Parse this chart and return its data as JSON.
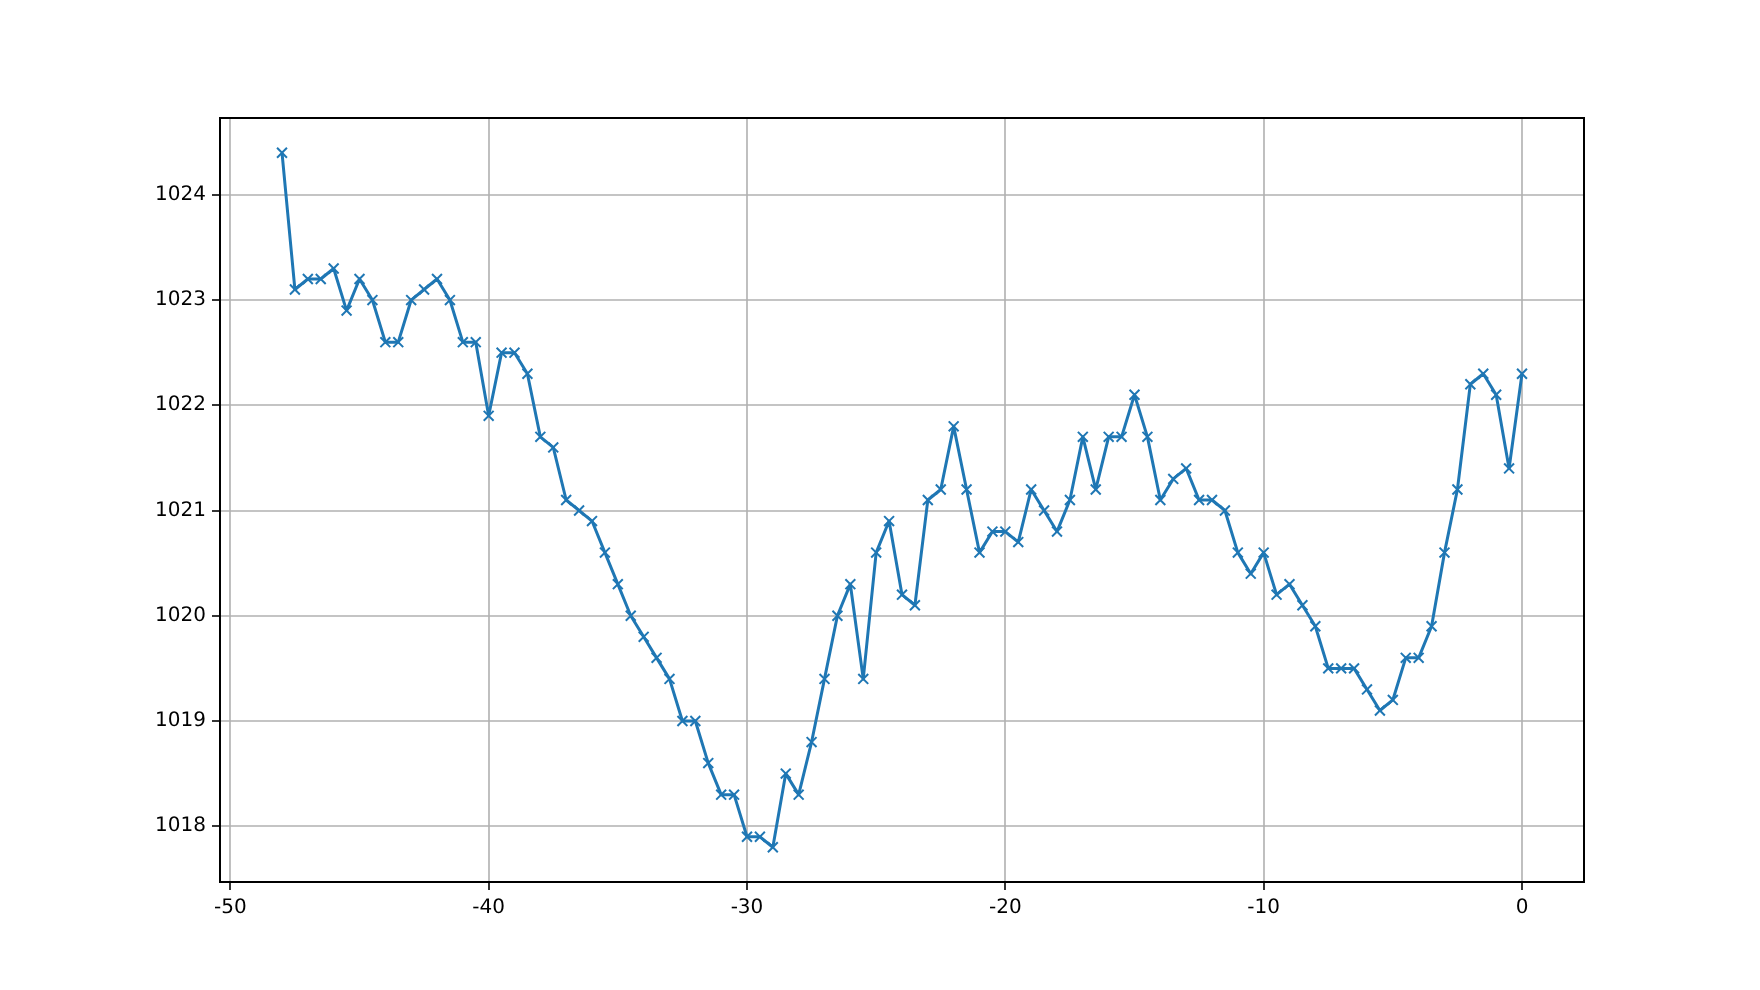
{
  "chart_data": {
    "type": "line",
    "marker": "cross",
    "line_style": "solid",
    "grid": true,
    "legend": false,
    "xlim": [
      -50.4,
      2.4
    ],
    "xticks": [
      -50,
      -40,
      -30,
      -20,
      -10,
      0
    ],
    "ylim": [
      1017.47,
      1024.73
    ],
    "yticks": [
      1018,
      1019,
      1020,
      1021,
      1022,
      1023,
      1024
    ],
    "x": [
      -48,
      -47.5,
      -47,
      -46.5,
      -46,
      -45.5,
      -45,
      -44.5,
      -44,
      -43.5,
      -43,
      -42.5,
      -42,
      -41.5,
      -41,
      -40.5,
      -40,
      -39.5,
      -39,
      -38.5,
      -38,
      -37.5,
      -37,
      -36.5,
      -36,
      -35.5,
      -35,
      -34.5,
      -34,
      -33.5,
      -33,
      -32.5,
      -32,
      -31.5,
      -31,
      -30.5,
      -30,
      -29.5,
      -29,
      -28.5,
      -28,
      -27.5,
      -27,
      -26.5,
      -26,
      -25.5,
      -25,
      -24.5,
      -24,
      -23.5,
      -23,
      -22.5,
      -22,
      -21.5,
      -21,
      -20.5,
      -20,
      -19.5,
      -19,
      -18.5,
      -18,
      -17.5,
      -17,
      -16.5,
      -16,
      -15.5,
      -15,
      -14.5,
      -14,
      -13.5,
      -13,
      -12.5,
      -12,
      -11.5,
      -11,
      -10.5,
      -10,
      -9.5,
      -9,
      -8.5,
      -8,
      -7.5,
      -7,
      -6.5,
      -6,
      -5.5,
      -5,
      -4.5,
      -4,
      -3.5,
      -3,
      -2.5,
      -2,
      -1.5,
      -1,
      -0.5,
      0
    ],
    "series": [
      {
        "color": "#1f77b4",
        "values": [
          1024.4,
          1023.1,
          1023.2,
          1023.2,
          1023.3,
          1022.9,
          1023.2,
          1023.0,
          1022.6,
          1022.6,
          1023.0,
          1023.1,
          1023.2,
          1023.0,
          1022.6,
          1022.6,
          1021.9,
          1022.5,
          1022.5,
          1022.3,
          1021.7,
          1021.6,
          1021.1,
          1021.0,
          1020.9,
          1020.6,
          1020.3,
          1020.0,
          1019.8,
          1019.6,
          1019.4,
          1019.0,
          1019.0,
          1018.6,
          1018.3,
          1018.3,
          1017.9,
          1017.9,
          1017.8,
          1018.5,
          1018.3,
          1018.8,
          1019.4,
          1020.0,
          1020.3,
          1019.4,
          1020.6,
          1020.9,
          1020.2,
          1020.1,
          1021.1,
          1021.2,
          1021.8,
          1021.2,
          1020.6,
          1020.8,
          1020.8,
          1020.7,
          1021.2,
          1021.0,
          1020.8,
          1021.1,
          1021.7,
          1021.2,
          1021.7,
          1021.7,
          1022.1,
          1021.7,
          1021.1,
          1021.3,
          1021.4,
          1021.1,
          1021.1,
          1021.0,
          1020.6,
          1020.4,
          1020.6,
          1020.2,
          1020.3,
          1020.1,
          1019.9,
          1019.5,
          1019.5,
          1019.5,
          1019.3,
          1019.1,
          1019.2,
          1019.6,
          1019.6,
          1019.9,
          1020.6,
          1021.2,
          1022.2,
          1022.3,
          1022.1,
          1021.4,
          1022.3
        ]
      }
    ]
  }
}
